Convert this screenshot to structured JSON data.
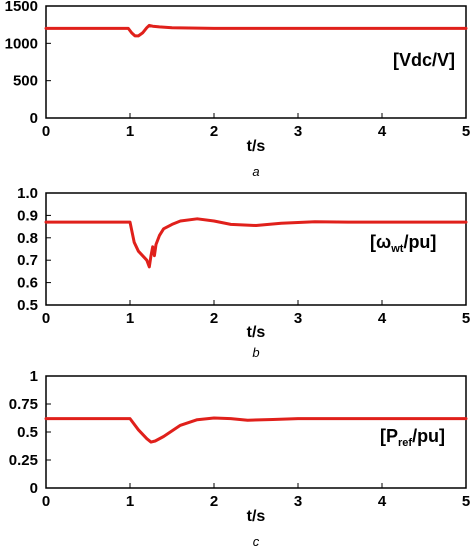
{
  "colors": {
    "series": "#e0201b",
    "axis": "#000000"
  },
  "chart_data": [
    {
      "type": "line",
      "caption": "a",
      "xlabel": "t/s",
      "legend_label": "[Vdc/V]",
      "xlim": [
        0,
        5
      ],
      "ylim": [
        0,
        1500
      ],
      "xticks": [
        "0",
        "1",
        "2",
        "3",
        "4",
        "5"
      ],
      "yticks": [
        0,
        500,
        1000,
        1500
      ],
      "ytick_labels": [
        "0",
        "500",
        "1000",
        "1500"
      ],
      "series": [
        {
          "x": [
            0,
            0.98,
            1.02,
            1.06,
            1.1,
            1.15,
            1.2,
            1.23,
            1.27,
            1.35,
            1.5,
            2.0,
            3.0,
            4.0,
            5.0
          ],
          "y": [
            1200,
            1200,
            1140,
            1100,
            1100,
            1140,
            1210,
            1240,
            1230,
            1220,
            1210,
            1200,
            1200,
            1200,
            1200
          ]
        }
      ]
    },
    {
      "type": "line",
      "caption": "b",
      "xlabel": "t/s",
      "legend_label": {
        "pre": "[ω",
        "sub": "wt",
        "post": "/pu]"
      },
      "xlim": [
        0,
        5
      ],
      "ylim": [
        0.5,
        1.0
      ],
      "xticks": [
        "0",
        "1",
        "2",
        "3",
        "4",
        "5"
      ],
      "yticks": [
        0.5,
        0.6,
        0.7,
        0.8,
        0.9,
        1.0
      ],
      "ytick_labels": [
        "0.5",
        "0.6",
        "0.7",
        "0.8",
        "0.9",
        "1.0"
      ],
      "series": [
        {
          "x": [
            0,
            1.0,
            1.05,
            1.1,
            1.15,
            1.2,
            1.23,
            1.25,
            1.27,
            1.29,
            1.31,
            1.35,
            1.4,
            1.5,
            1.6,
            1.8,
            2.0,
            2.2,
            2.5,
            2.8,
            3.2,
            3.6,
            4.0,
            5.0
          ],
          "y": [
            0.87,
            0.87,
            0.78,
            0.74,
            0.72,
            0.7,
            0.67,
            0.72,
            0.76,
            0.72,
            0.77,
            0.81,
            0.84,
            0.86,
            0.875,
            0.885,
            0.875,
            0.86,
            0.855,
            0.865,
            0.872,
            0.87,
            0.87,
            0.87
          ]
        }
      ]
    },
    {
      "type": "line",
      "caption": "c",
      "xlabel": "t/s",
      "legend_label": {
        "pre": "[P",
        "sub": "ref",
        "post": "/pu]"
      },
      "xlim": [
        0,
        5
      ],
      "ylim": [
        0,
        1
      ],
      "xticks": [
        "0",
        "1",
        "2",
        "3",
        "4",
        "5"
      ],
      "yticks": [
        0,
        0.25,
        0.5,
        0.75,
        1
      ],
      "ytick_labels": [
        "0",
        "0.25",
        "0.5",
        "0.75",
        "1"
      ],
      "series": [
        {
          "x": [
            0,
            1.0,
            1.1,
            1.2,
            1.25,
            1.3,
            1.4,
            1.5,
            1.6,
            1.8,
            2.0,
            2.2,
            2.4,
            2.7,
            3.0,
            3.5,
            4.0,
            5.0
          ],
          "y": [
            0.62,
            0.62,
            0.52,
            0.44,
            0.41,
            0.42,
            0.46,
            0.51,
            0.56,
            0.61,
            0.625,
            0.62,
            0.605,
            0.612,
            0.62,
            0.62,
            0.62,
            0.62
          ]
        }
      ]
    }
  ]
}
